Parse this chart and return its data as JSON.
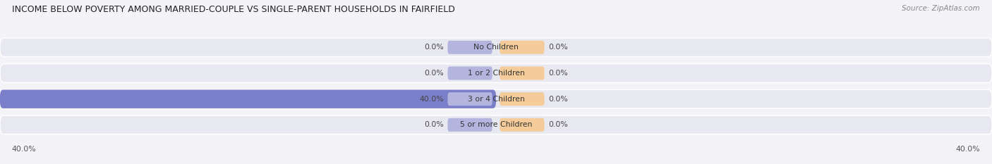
{
  "title": "INCOME BELOW POVERTY AMONG MARRIED-COUPLE VS SINGLE-PARENT HOUSEHOLDS IN FAIRFIELD",
  "source": "Source: ZipAtlas.com",
  "categories": [
    "No Children",
    "1 or 2 Children",
    "3 or 4 Children",
    "5 or more Children"
  ],
  "married_values": [
    0.0,
    0.0,
    40.0,
    0.0
  ],
  "single_values": [
    0.0,
    0.0,
    0.0,
    0.0
  ],
  "max_val": 40.0,
  "married_color": "#7b7ec8",
  "married_color_light": "#b3b5df",
  "single_color": "#f0a860",
  "single_color_light": "#f5cc99",
  "bar_bg_color": "#e8e8f0",
  "fig_bg_color": "#f4f4f8",
  "title_fontsize": 9.0,
  "label_fontsize": 7.8,
  "source_fontsize": 7.5,
  "legend_fontsize": 8.0,
  "axis_label_bottom_left": "40.0%",
  "axis_label_bottom_right": "40.0%"
}
